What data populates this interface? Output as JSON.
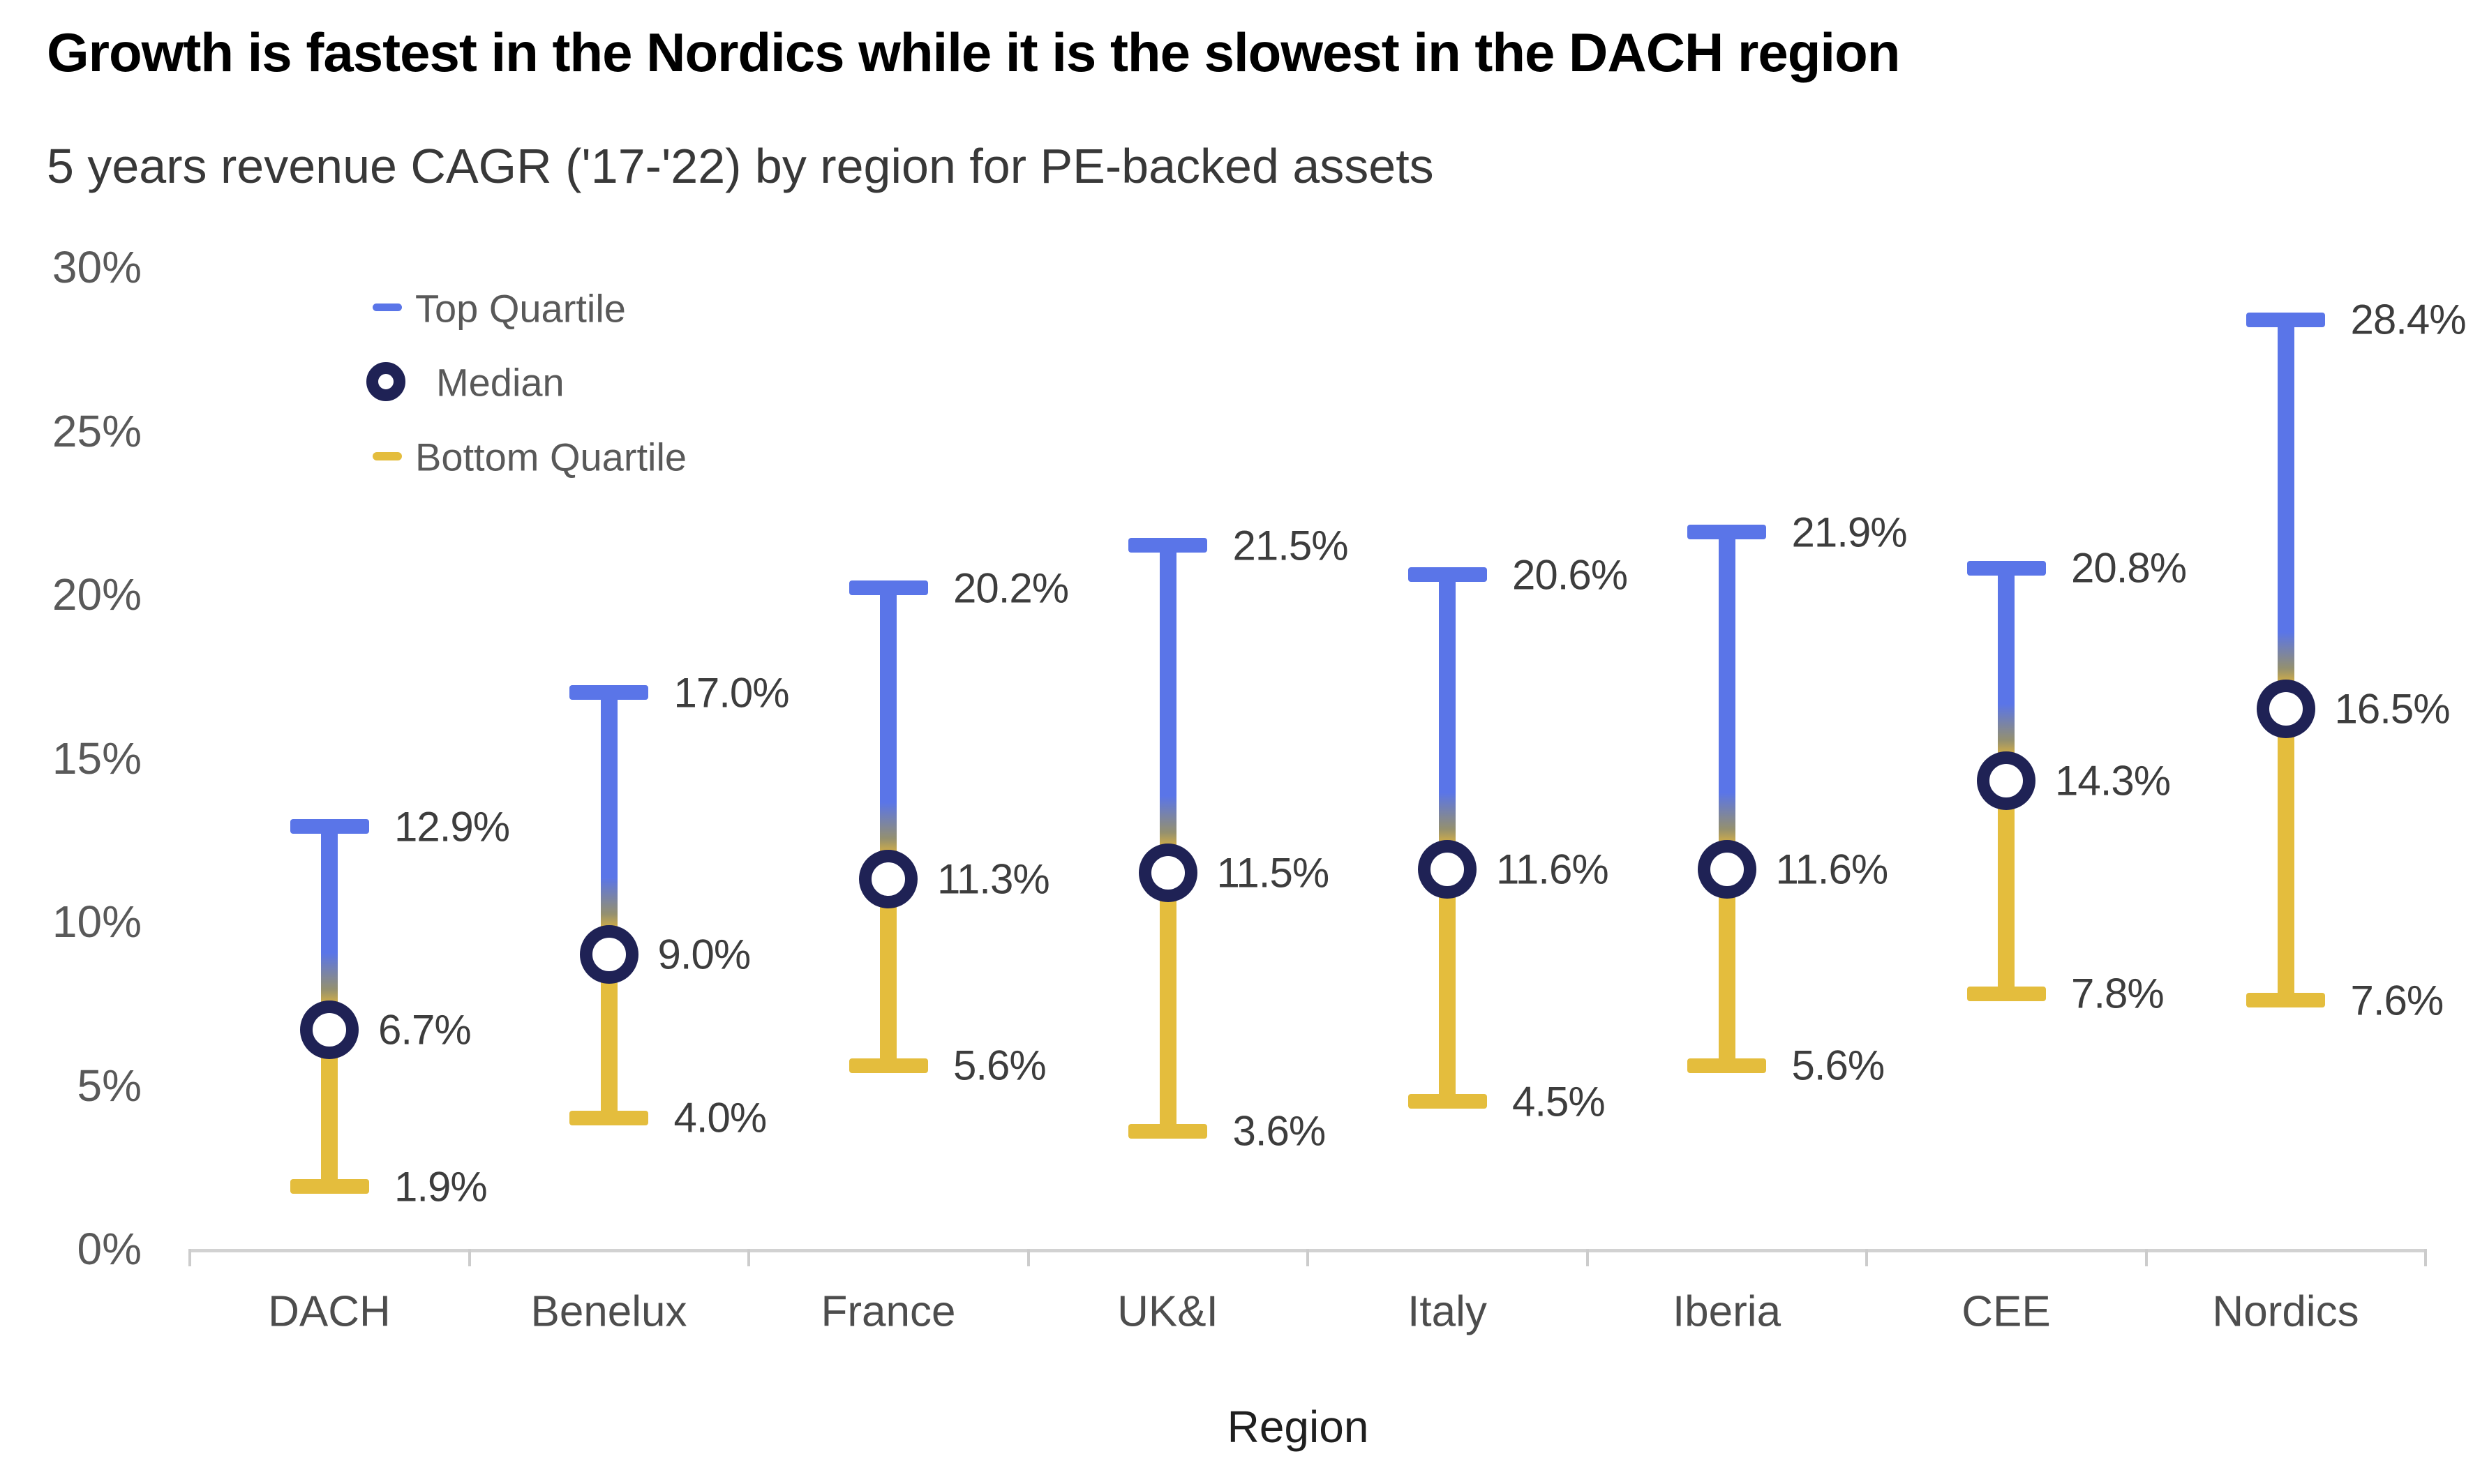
{
  "title": "Growth is fastest in the Nordics while it is the slowest in the DACH region",
  "subtitle": "5 years revenue CAGR ('17-'22) by region for PE-backed assets",
  "colors": {
    "top_quartile_blue": "#5a75e8",
    "bottom_quartile_yellow": "#e4bd3d",
    "median_ring_navy": "#1f2255",
    "gradient_mid_gray": "#94906f",
    "gradient_gold": "#d9b142",
    "value_label": "#3d3d3d",
    "tick_label": "#595959",
    "x_tick_label": "#4d4d4d",
    "axis_line": "#d2d2d2",
    "title_color": "#000000",
    "subtitle_color": "#383838"
  },
  "chart_data": {
    "type": "range",
    "title": "Growth is fastest in the Nordics while it is the slowest in the DACH region",
    "subtitle": "5 years revenue CAGR ('17-'22) by region for PE-backed assets",
    "categories": [
      "DACH",
      "Benelux",
      "France",
      "UK&I",
      "Italy",
      "Iberia",
      "CEE",
      "Nordics"
    ],
    "series": [
      {
        "name": "Top Quartile",
        "values": [
          12.9,
          17.0,
          20.2,
          21.5,
          20.6,
          21.9,
          20.8,
          28.4
        ],
        "labels": [
          "12.9%",
          "17.0%",
          "20.2%",
          "21.5%",
          "20.6%",
          "21.9%",
          "20.8%",
          "28.4%"
        ]
      },
      {
        "name": "Median",
        "values": [
          6.7,
          9.0,
          11.3,
          11.5,
          11.6,
          11.6,
          14.3,
          16.5
        ],
        "labels": [
          "6.7%",
          "9.0%",
          "11.3%",
          "11.5%",
          "11.6%",
          "11.6%",
          "14.3%",
          "16.5%"
        ]
      },
      {
        "name": "Bottom Quartile",
        "values": [
          1.9,
          4.0,
          5.6,
          3.6,
          4.5,
          5.6,
          7.8,
          7.6
        ],
        "labels": [
          "1.9%",
          "4.0%",
          "5.6%",
          "3.6%",
          "4.5%",
          "5.6%",
          "7.8%",
          "7.6%"
        ]
      }
    ],
    "xlabel": "Region",
    "ylabel": "",
    "ylim": [
      0,
      30
    ],
    "y_ticks": [
      {
        "value": 0,
        "label": "0%"
      },
      {
        "value": 5,
        "label": "5%"
      },
      {
        "value": 10,
        "label": "10%"
      },
      {
        "value": 15,
        "label": "15%"
      },
      {
        "value": 20,
        "label": "20%"
      },
      {
        "value": 25,
        "label": "25%"
      },
      {
        "value": 30,
        "label": "30%"
      }
    ],
    "grid": false,
    "legend_position": "top-left"
  }
}
